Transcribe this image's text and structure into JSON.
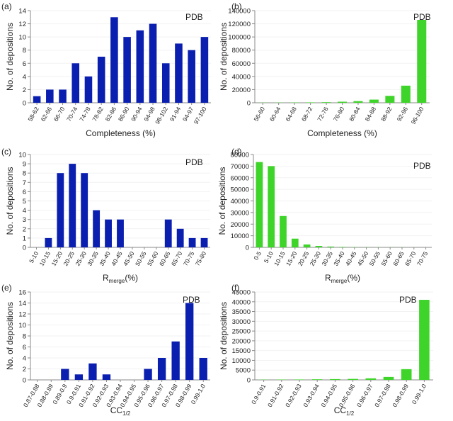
{
  "colors": {
    "blue": "#0a1fb0",
    "green": "#3fd42a",
    "axis": "#8a8a8a",
    "grid": "#f2f2f2"
  },
  "chart_data": [
    {
      "panel": "(a)",
      "type": "bar",
      "legend": "PDB",
      "xlabel": "Completeness (%)",
      "xlabel_sub": "",
      "ylabel": "No. of depositions",
      "ylim": [
        0,
        14
      ],
      "yticks": [
        0,
        2,
        4,
        6,
        8,
        10,
        12,
        14
      ],
      "categories": [
        "58-62",
        "62-66",
        "66-70",
        "70-74",
        "74-78",
        "78-82",
        "82-86",
        "86-90",
        "90-94",
        "94-98",
        "98-102",
        "91-94",
        "94-97",
        "97-100"
      ],
      "values": [
        1,
        2,
        2,
        6,
        4,
        7,
        13,
        10,
        11,
        12,
        6,
        9,
        8,
        10
      ]
    },
    {
      "panel": "(b)",
      "type": "bar",
      "legend": "PDB",
      "xlabel": "Completeness (%)",
      "xlabel_sub": "",
      "ylabel": "No. of depositions",
      "ylim": [
        0,
        140000
      ],
      "yticks": [
        0,
        20000,
        40000,
        60000,
        80000,
        100000,
        120000,
        140000
      ],
      "categories": [
        "56-60",
        "60-64",
        "64-68",
        "68-72",
        "72-76",
        "76-80",
        "80-84",
        "84-88",
        "88-92",
        "92-96",
        "96-100"
      ],
      "values": [
        200,
        300,
        400,
        600,
        900,
        1600,
        2500,
        4800,
        10500,
        26000,
        126000
      ]
    },
    {
      "panel": "(c)",
      "type": "bar",
      "legend": "PDB",
      "xlabel": "R",
      "xlabel_sub": "merge",
      "xlabel_suffix": "(%)",
      "ylabel": "No. of depositions",
      "ylim": [
        0,
        10
      ],
      "yticks": [
        0,
        1,
        2,
        3,
        4,
        5,
        6,
        7,
        8,
        9,
        10
      ],
      "categories": [
        "5-10",
        "10-15",
        "15-20",
        "20-25",
        "25-30",
        "30-35",
        "35-40",
        "40-45",
        "45-50",
        "50-55",
        "55-60",
        "60-65",
        "65-70",
        "70-75",
        "75-80"
      ],
      "values": [
        0,
        1,
        8,
        9,
        8,
        4,
        3,
        3,
        0,
        0,
        0,
        3,
        2,
        1,
        1
      ]
    },
    {
      "panel": "(d)",
      "type": "bar",
      "legend": "PDB",
      "xlabel": "R",
      "xlabel_sub": "merge",
      "xlabel_suffix": "(%)",
      "ylabel": "No. of depositions",
      "ylim": [
        0,
        80000
      ],
      "yticks": [
        0,
        10000,
        20000,
        30000,
        40000,
        50000,
        60000,
        70000,
        80000
      ],
      "categories": [
        "0-5",
        "5-10",
        "10-15",
        "15-20",
        "20-25",
        "25-30",
        "30-35",
        "35-40",
        "40-45",
        "45-50",
        "50-55",
        "55-60",
        "60-65",
        "65-70",
        "70-75"
      ],
      "values": [
        73500,
        70000,
        27000,
        7500,
        2500,
        1200,
        700,
        400,
        250,
        150,
        100,
        80,
        60,
        40,
        30
      ]
    },
    {
      "panel": "(e)",
      "type": "bar",
      "legend": "PDB",
      "xlabel": "CC",
      "xlabel_sub": "1/2",
      "xlabel_suffix": "",
      "ylabel": "No. of depositions",
      "ylim": [
        0,
        16
      ],
      "yticks": [
        0,
        2,
        4,
        6,
        8,
        10,
        12,
        14,
        16
      ],
      "categories": [
        "0.87-0.88",
        "0.88-0.89",
        "0.89-0.9",
        "0.9-0.91",
        "0.91-0.92",
        "0.92-0.93",
        "0.93-0.94",
        "0.94-0.95",
        "0.95-0.96",
        "0.96-0.97",
        "0.97-0.98",
        "0.98-0.99",
        "0.99-1.0"
      ],
      "values": [
        0,
        0,
        2,
        1,
        3,
        1,
        0,
        0,
        2,
        4,
        7,
        14,
        4
      ]
    },
    {
      "panel": "(f)",
      "type": "bar",
      "legend": "PDB",
      "xlabel": "CC",
      "xlabel_sub": "1/2",
      "xlabel_suffix": "",
      "ylabel": "No. of depositions",
      "ylim": [
        0,
        45000
      ],
      "yticks": [
        0,
        5000,
        10000,
        15000,
        20000,
        25000,
        30000,
        35000,
        40000,
        45000
      ],
      "categories": [
        "0.9-0.91",
        "0.91-0.92",
        "0.92-0.93",
        "0.93-0.94",
        "0.94-0.95",
        "0.95-0.96",
        "0.96-0.97",
        "0.97-0.98",
        "0.98-0.99",
        "0.99-1.0"
      ],
      "values": [
        100,
        150,
        200,
        300,
        400,
        500,
        800,
        1500,
        5500,
        41000
      ]
    }
  ]
}
